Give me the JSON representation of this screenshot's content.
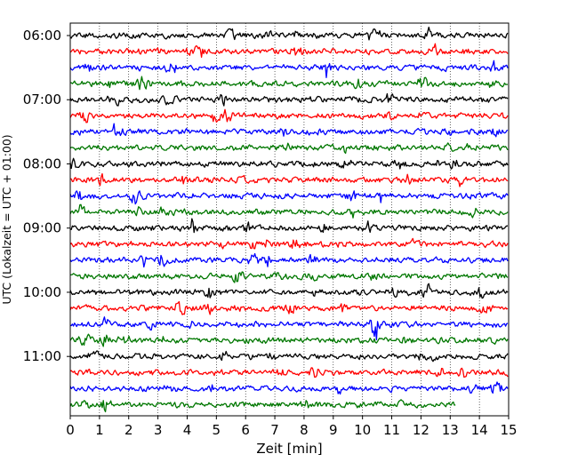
{
  "chart_data": {
    "type": "line",
    "title": "",
    "xlabel": "Zeit  [min]",
    "ylabel": "UTC (Lokalzeit = UTC + 01:00)",
    "xlim": [
      0,
      15
    ],
    "x_ticks": [
      "0",
      "1",
      "2",
      "3",
      "4",
      "5",
      "6",
      "7",
      "8",
      "9",
      "10",
      "11",
      "12",
      "13",
      "14",
      "15"
    ],
    "y_tick_labels": [
      "06:00",
      "07:00",
      "08:00",
      "09:00",
      "10:00",
      "11:00"
    ],
    "grid": "vertical dotted lines at each minute",
    "legend": "none",
    "trace_interval_min": 15,
    "trace_colors": [
      "#000000",
      "#ff0000",
      "#0000ff",
      "#007700"
    ],
    "series": [
      {
        "start": "06:00",
        "color": "#000000",
        "x_end": 15
      },
      {
        "start": "06:15",
        "color": "#ff0000",
        "x_end": 15
      },
      {
        "start": "06:30",
        "color": "#0000ff",
        "x_end": 15
      },
      {
        "start": "06:45",
        "color": "#007700",
        "x_end": 15
      },
      {
        "start": "07:00",
        "color": "#000000",
        "x_end": 15
      },
      {
        "start": "07:15",
        "color": "#ff0000",
        "x_end": 15
      },
      {
        "start": "07:30",
        "color": "#0000ff",
        "x_end": 15
      },
      {
        "start": "07:45",
        "color": "#007700",
        "x_end": 15
      },
      {
        "start": "08:00",
        "color": "#000000",
        "x_end": 15
      },
      {
        "start": "08:15",
        "color": "#ff0000",
        "x_end": 15
      },
      {
        "start": "08:30",
        "color": "#0000ff",
        "x_end": 15
      },
      {
        "start": "08:45",
        "color": "#007700",
        "x_end": 15
      },
      {
        "start": "09:00",
        "color": "#000000",
        "x_end": 15
      },
      {
        "start": "09:15",
        "color": "#ff0000",
        "x_end": 15
      },
      {
        "start": "09:30",
        "color": "#0000ff",
        "x_end": 15
      },
      {
        "start": "09:45",
        "color": "#007700",
        "x_end": 15
      },
      {
        "start": "10:00",
        "color": "#000000",
        "x_end": 15
      },
      {
        "start": "10:15",
        "color": "#ff0000",
        "x_end": 15
      },
      {
        "start": "10:30",
        "color": "#0000ff",
        "x_end": 15
      },
      {
        "start": "10:45",
        "color": "#007700",
        "x_end": 15
      },
      {
        "start": "11:00",
        "color": "#000000",
        "x_end": 15
      },
      {
        "start": "11:15",
        "color": "#ff0000",
        "x_end": 15
      },
      {
        "start": "11:30",
        "color": "#0000ff",
        "x_end": 15
      },
      {
        "start": "11:45",
        "color": "#007700",
        "x_end": 13.2
      }
    ]
  }
}
